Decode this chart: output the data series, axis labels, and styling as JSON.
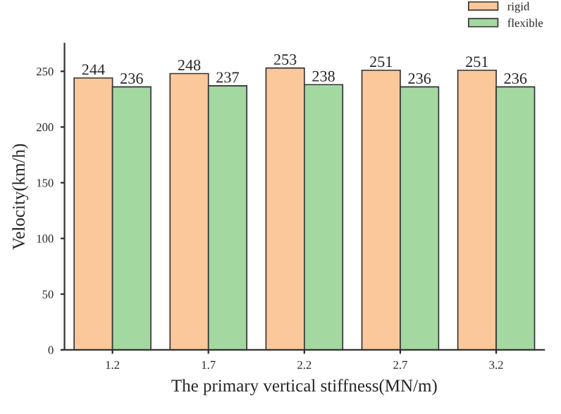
{
  "chart_data": {
    "type": "bar",
    "xlabel": "The primary vertical stiffness(MN/m)",
    "ylabel": "Velocity(km/h)",
    "categories": [
      "1.2",
      "1.7",
      "2.2",
      "2.7",
      "3.2"
    ],
    "series": [
      {
        "name": "rigid",
        "color": "#fbc89b",
        "values": [
          244,
          248,
          253,
          251,
          251
        ]
      },
      {
        "name": "flexible",
        "color": "#a3d9a0",
        "values": [
          236,
          237,
          238,
          236,
          236
        ]
      }
    ],
    "ylim": [
      0,
      275
    ],
    "yticks": [
      0,
      50,
      100,
      150,
      200,
      250
    ],
    "data_labels": true,
    "legend": "top right",
    "grid": false
  }
}
